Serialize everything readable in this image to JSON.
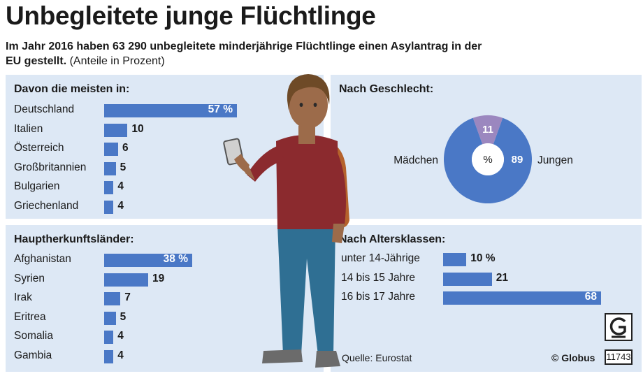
{
  "title": "Unbegleitete junge Flüchtlinge",
  "subtitle_bold": "Im Jahr 2016 haben 63 290 unbegleitete minderjährige Flüchtlinge einen Asylantrag in der EU gestellt.",
  "subtitle_note": "(Anteile in Prozent)",
  "colors": {
    "bar": "#4a78c6",
    "panel": "#dde8f5",
    "girls": "#9b87bf",
    "boys": "#4a78c6"
  },
  "chart_data": [
    {
      "type": "bar",
      "title": "Davon die meisten in:",
      "categories": [
        "Deutschland",
        "Italien",
        "Österreich",
        "Großbritannien",
        "Bulgarien",
        "Griechenland"
      ],
      "values": [
        57,
        10,
        6,
        5,
        4,
        4
      ],
      "value_labels": [
        "57 %",
        "10",
        "6",
        "5",
        "4",
        "4"
      ],
      "max": 57,
      "first_inside": true
    },
    {
      "type": "pie",
      "title": "Nach Geschlecht:",
      "center_label": "%",
      "slices": [
        {
          "name": "Mädchen",
          "value": 11
        },
        {
          "name": "Jungen",
          "value": 89
        }
      ]
    },
    {
      "type": "bar",
      "title": "Hauptherkunftsländer:",
      "categories": [
        "Afghanistan",
        "Syrien",
        "Irak",
        "Eritrea",
        "Somalia",
        "Gambia"
      ],
      "values": [
        38,
        19,
        7,
        5,
        4,
        4
      ],
      "value_labels": [
        "38 %",
        "19",
        "7",
        "5",
        "4",
        "4"
      ],
      "max": 38,
      "first_inside": true
    },
    {
      "type": "bar",
      "title": "Nach Altersklassen:",
      "categories": [
        "unter 14-Jährige",
        "14 bis 15 Jahre",
        "16 bis 17 Jahre"
      ],
      "values": [
        10,
        21,
        68
      ],
      "value_labels": [
        "10 %",
        "21",
        "68"
      ],
      "max": 68,
      "last_inside": true
    }
  ],
  "source": "Quelle: Eurostat",
  "copyright": "© Globus",
  "graphic_number": "11743",
  "logo_icon": "globus-logo-icon"
}
